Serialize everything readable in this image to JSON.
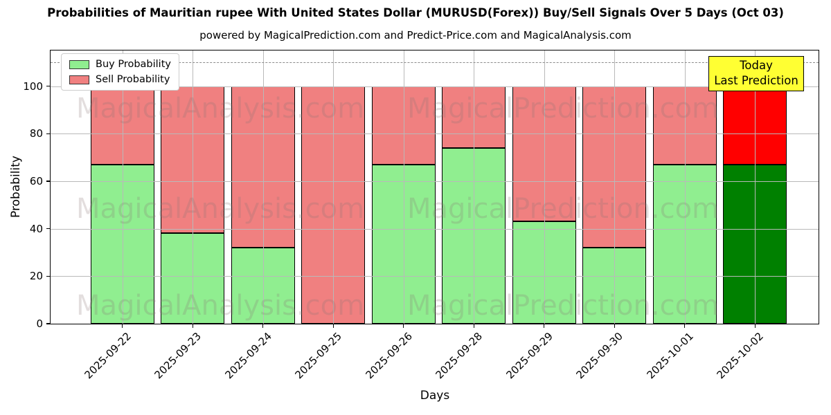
{
  "page": {
    "background": "#ffffff"
  },
  "chart_data": {
    "type": "bar",
    "stacked": true,
    "title": "Probabilities of Mauritian rupee With United States Dollar (MURUSD(Forex)) Buy/Sell Signals Over 5 Days (Oct 03)",
    "subtitle": "powered by MagicalPrediction.com and Predict-Price.com and MagicalAnalysis.com",
    "xlabel": "Days",
    "ylabel": "Probability",
    "categories": [
      "2025-09-22",
      "2025-09-23",
      "2025-09-24",
      "2025-09-25",
      "2025-09-26",
      "2025-09-28",
      "2025-09-29",
      "2025-09-30",
      "2025-10-01",
      "2025-10-02"
    ],
    "series": [
      {
        "name": "Buy Probability",
        "color": "#90EE90",
        "last_bar_color": "#008000",
        "values": [
          67,
          38,
          32,
          0,
          67,
          74,
          43,
          32,
          67,
          67
        ]
      },
      {
        "name": "Sell Probability",
        "color": "#F08080",
        "last_bar_color": "#FF0000",
        "values": [
          33,
          62,
          68,
          100,
          33,
          26,
          57,
          68,
          33,
          33
        ]
      }
    ],
    "ylim": [
      0,
      115
    ],
    "yticks": [
      0,
      20,
      40,
      60,
      80,
      100
    ],
    "grid": true,
    "dashed_line_y": 110,
    "legend": {
      "position": "top-left",
      "entries": [
        {
          "label": "Buy Probability",
          "color": "#90EE90"
        },
        {
          "label": "Sell Probability",
          "color": "#F08080"
        }
      ]
    },
    "annotation": {
      "line1": "Today",
      "line2": "Last Prediction",
      "bg_color": "#FFFF33",
      "border_color": "#000000",
      "text_color": "#000000"
    },
    "watermarks": {
      "left": "MagicalAnalysis.com",
      "right": "MagicalPrediction.com",
      "color": "rgba(139,115,115,0.24)"
    }
  }
}
